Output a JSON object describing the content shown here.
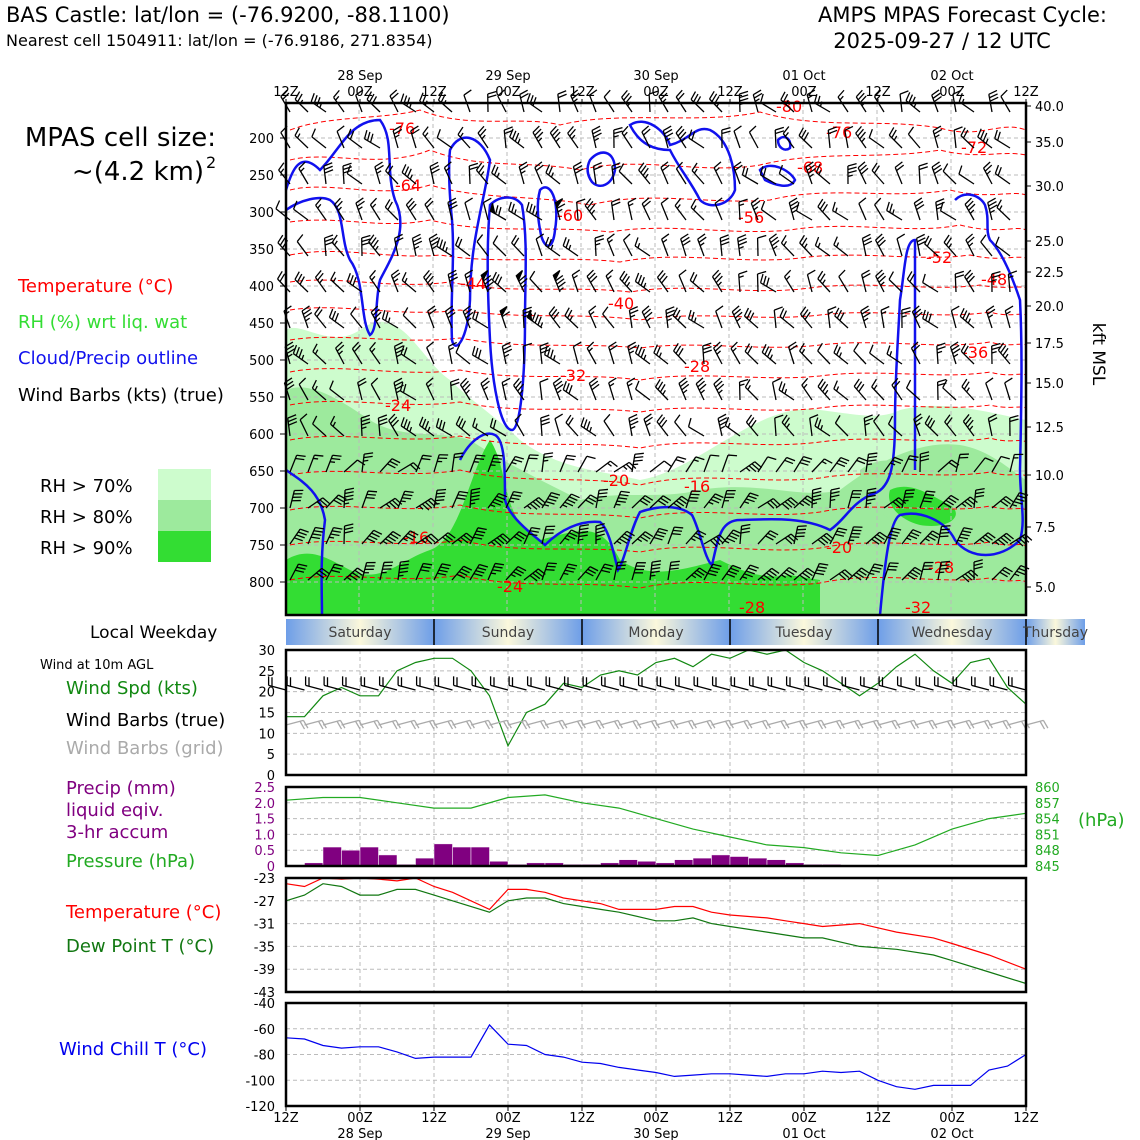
{
  "header": {
    "site_line": "BAS Castle: lat/lon = (-76.9200, -88.1100)",
    "cell_line": "Nearest cell 1504911: lat/lon = (-76.9186, 271.8354)",
    "model_line": "AMPS MPAS Forecast Cycle:",
    "cycle_line": "2025-09-27 / 12 UTC"
  },
  "cell_size": {
    "line1": "MPAS cell size:",
    "line2": "~(4.2 km)",
    "exp": "2"
  },
  "legend_top": {
    "temperature": "Temperature (°C)",
    "rh": "RH (%) wrt liq. wat",
    "cloud": "Cloud/Precip outline",
    "barbs": "Wind Barbs (kts) (true)",
    "rh70": "RH > 70%",
    "rh80": "RH > 80%",
    "rh90": "RH > 90%"
  },
  "colors": {
    "temperature": "#ff0000",
    "rh_label": "#33dd33",
    "cloud": "#1111ee",
    "rh70": "#cdfccd",
    "rh80": "#9dea9d",
    "rh90": "#33dd33",
    "wind": "#118811",
    "precip": "#800080",
    "pressure": "#22aa22",
    "dewpoint": "#117711",
    "windchill": "#0000ee",
    "grid_barbs": "#aaaaaa",
    "day_blue": "#6e9ee8",
    "day_cream": "#fbf8dc"
  },
  "time_axis": {
    "top_ticks": [
      "12Z",
      "00Z",
      "12Z",
      "00Z",
      "12Z",
      "00Z",
      "12Z",
      "00Z",
      "12Z",
      "00Z",
      "12Z"
    ],
    "top_dates": [
      "28 Sep",
      "29 Sep",
      "30 Sep",
      "01 Oct",
      "02 Oct"
    ],
    "bottom_ticks": [
      "12Z",
      "00Z",
      "12Z",
      "00Z",
      "12Z",
      "00Z",
      "12Z",
      "00Z",
      "12Z",
      "00Z",
      "12Z"
    ],
    "bottom_dates": [
      "28 Sep",
      "29 Sep",
      "30 Sep",
      "01 Oct",
      "02 Oct"
    ]
  },
  "pressure_axis": {
    "ticks": [
      "200",
      "250",
      "300",
      "350",
      "400",
      "450",
      "500",
      "550",
      "600",
      "650",
      "700",
      "750",
      "800"
    ]
  },
  "height_axis": {
    "label": "kft MSL",
    "ticks": [
      "40.0",
      "35.0",
      "30.0",
      "25.0",
      "22.5",
      "20.0",
      "17.5",
      "15.0",
      "12.5",
      "10.0",
      "7.5",
      "5.0"
    ]
  },
  "weekday": {
    "label": "Local Weekday",
    "days": [
      "Saturday",
      "Sunday",
      "Monday",
      "Tuesday",
      "Wednesday",
      "Thursday"
    ]
  },
  "temp_contour_labels": [
    "-80",
    "-76",
    "-76",
    "-72",
    "-68",
    "-64",
    "-60",
    "-56",
    "-52",
    "-48",
    "-44",
    "-40",
    "-36",
    "-32",
    "-28",
    "-24",
    "-20",
    "-16",
    "-16",
    "-20",
    "-24",
    "-28",
    "-28",
    "-32"
  ],
  "wind_panel": {
    "title": "Wind at 10m AGL",
    "spd_label": "Wind Spd (kts)",
    "barbs_true": "Wind Barbs (true)",
    "barbs_grid": "Wind Barbs (grid)",
    "yticks": [
      "30",
      "25",
      "20",
      "15",
      "10",
      "5",
      "0"
    ]
  },
  "precip_panel": {
    "label1": "Precip (mm)",
    "label2": "liquid eqiv.",
    "label3": "3-hr accum",
    "pressure_label": "Pressure (hPa)",
    "yticks": [
      "2.5",
      "2.0",
      "1.5",
      "1.0",
      "0.5",
      "0"
    ],
    "pressure_ticks": [
      "860",
      "857",
      "854",
      "851",
      "848",
      "845"
    ],
    "hpa_unit": "(hPa)"
  },
  "temp_panel": {
    "t_label": "Temperature (°C)",
    "td_label": "Dew Point T (°C)",
    "yticks": [
      "-23",
      "-27",
      "-31",
      "-35",
      "-39",
      "-43"
    ]
  },
  "chill_panel": {
    "label": "Wind Chill T (°C)",
    "yticks": [
      "-40",
      "-60",
      "-80",
      "-100",
      "-120"
    ]
  },
  "chart_data": [
    {
      "type": "line",
      "panel": "Wind at 10m AGL",
      "series_label": "Wind Spd (kts)",
      "x_hours": [
        0,
        3,
        6,
        9,
        12,
        15,
        18,
        21,
        24,
        27,
        30,
        33,
        36,
        39,
        42,
        45,
        48,
        51,
        54,
        57,
        60,
        63,
        66,
        69,
        72,
        75,
        78,
        81,
        84,
        87,
        90,
        93,
        96,
        99,
        102,
        105,
        108,
        111,
        114,
        117,
        120
      ],
      "values": [
        14,
        14,
        19,
        21,
        19,
        19,
        25,
        27,
        28,
        28,
        25,
        19,
        7,
        15,
        17,
        22,
        21,
        24,
        25,
        24,
        27,
        28,
        26,
        29,
        28,
        30,
        29,
        30,
        27,
        25,
        22,
        19,
        22,
        26,
        29,
        25,
        22,
        27,
        28,
        21,
        17
      ],
      "ylim": [
        0,
        30
      ]
    },
    {
      "type": "bar",
      "panel": "Precip",
      "series_label": "Precip (mm) 3-hr accum",
      "x_hours": [
        6,
        9,
        12,
        15,
        18,
        21,
        24,
        27,
        30,
        33,
        36,
        39,
        42,
        45,
        48,
        51,
        54,
        57,
        60,
        63,
        66,
        69,
        72,
        75,
        78,
        81,
        84,
        87,
        90
      ],
      "values": [
        0.1,
        0.6,
        0.5,
        0.6,
        0.35,
        0.05,
        0.25,
        0.7,
        0.6,
        0.6,
        0.15,
        0.05,
        0.1,
        0.1,
        0.05,
        0.05,
        0.1,
        0.2,
        0.15,
        0.1,
        0.2,
        0.25,
        0.35,
        0.3,
        0.25,
        0.2,
        0.1,
        0.05,
        0.05
      ],
      "ylim": [
        0,
        2.5
      ]
    },
    {
      "type": "line",
      "panel": "Pressure",
      "series_label": "Pressure (hPa)",
      "x_hours": [
        0,
        6,
        12,
        18,
        24,
        30,
        36,
        42,
        48,
        54,
        60,
        66,
        72,
        78,
        84,
        90,
        96,
        102,
        108,
        114,
        120
      ],
      "values": [
        857.5,
        858,
        858,
        857,
        856,
        856,
        858,
        858.5,
        857,
        856,
        854,
        852,
        850.5,
        849,
        848.5,
        847.5,
        847,
        849,
        852,
        854,
        855
      ],
      "ylim": [
        845,
        860
      ]
    },
    {
      "type": "line",
      "panel": "Temperature",
      "series": [
        {
          "name": "Temperature (°C)",
          "values": [
            -24.0,
            -24.5,
            -23.0,
            -23.2,
            -23.0,
            -23.2,
            -23.5,
            -23.0,
            -24.5,
            -25.5,
            -28.5,
            -25.0,
            -25.0,
            -25.5,
            -26.5,
            -27.0,
            -27.5,
            -28.5,
            -28.5,
            -28.0,
            -28.0,
            -29.0,
            -29.5,
            -30.0,
            -30.5,
            -31.0,
            -31.5,
            -31.0,
            -32.5,
            -33.5,
            -34.5,
            -36.5,
            -39.0
          ],
          "x_hours": [
            0,
            3,
            6,
            9,
            12,
            15,
            18,
            21,
            24,
            27,
            33,
            36,
            39,
            42,
            45,
            48,
            51,
            54,
            60,
            63,
            66,
            69,
            72,
            78,
            81,
            84,
            87,
            93,
            99,
            105,
            108,
            114,
            120
          ]
        },
        {
          "name": "Dew Point T (°C)",
          "values": [
            -27.0,
            -26.0,
            -24.0,
            -24.5,
            -26.0,
            -26.0,
            -25.0,
            -25.0,
            -26.0,
            -27.0,
            -29.0,
            -27.0,
            -26.5,
            -26.5,
            -27.5,
            -28.0,
            -28.5,
            -29.0,
            -30.5,
            -30.5,
            -30.0,
            -31.0,
            -31.5,
            -32.5,
            -33.0,
            -33.5,
            -33.5,
            -35.0,
            -35.5,
            -36.5,
            -37.5,
            -39.5,
            -41.5
          ],
          "x_hours": [
            0,
            3,
            6,
            9,
            12,
            15,
            18,
            21,
            24,
            27,
            33,
            36,
            39,
            42,
            45,
            48,
            51,
            54,
            60,
            63,
            66,
            69,
            72,
            78,
            81,
            84,
            87,
            93,
            99,
            105,
            108,
            114,
            120
          ]
        }
      ],
      "ylim": [
        -43,
        -23
      ]
    },
    {
      "type": "line",
      "panel": "Wind Chill",
      "series_label": "Wind Chill T (°C)",
      "x_hours": [
        0,
        3,
        6,
        9,
        12,
        15,
        18,
        21,
        24,
        27,
        30,
        33,
        36,
        39,
        42,
        45,
        48,
        51,
        54,
        57,
        60,
        63,
        66,
        69,
        72,
        75,
        78,
        81,
        84,
        87,
        90,
        93,
        96,
        99,
        102,
        105,
        108,
        111,
        114,
        117,
        120
      ],
      "values": [
        -67,
        -68,
        -73,
        -75,
        -74,
        -74,
        -78,
        -83,
        -82,
        -82,
        -82,
        -57,
        -72,
        -73,
        -80,
        -82,
        -86,
        -87,
        -90,
        -92,
        -94,
        -97,
        -96,
        -95,
        -95,
        -96,
        -97,
        -95,
        -95,
        -93,
        -94,
        -93,
        -100,
        -105,
        -107,
        -104,
        -104,
        -104,
        -92,
        -89,
        -80
      ],
      "ylim": [
        -120,
        -40
      ]
    }
  ]
}
